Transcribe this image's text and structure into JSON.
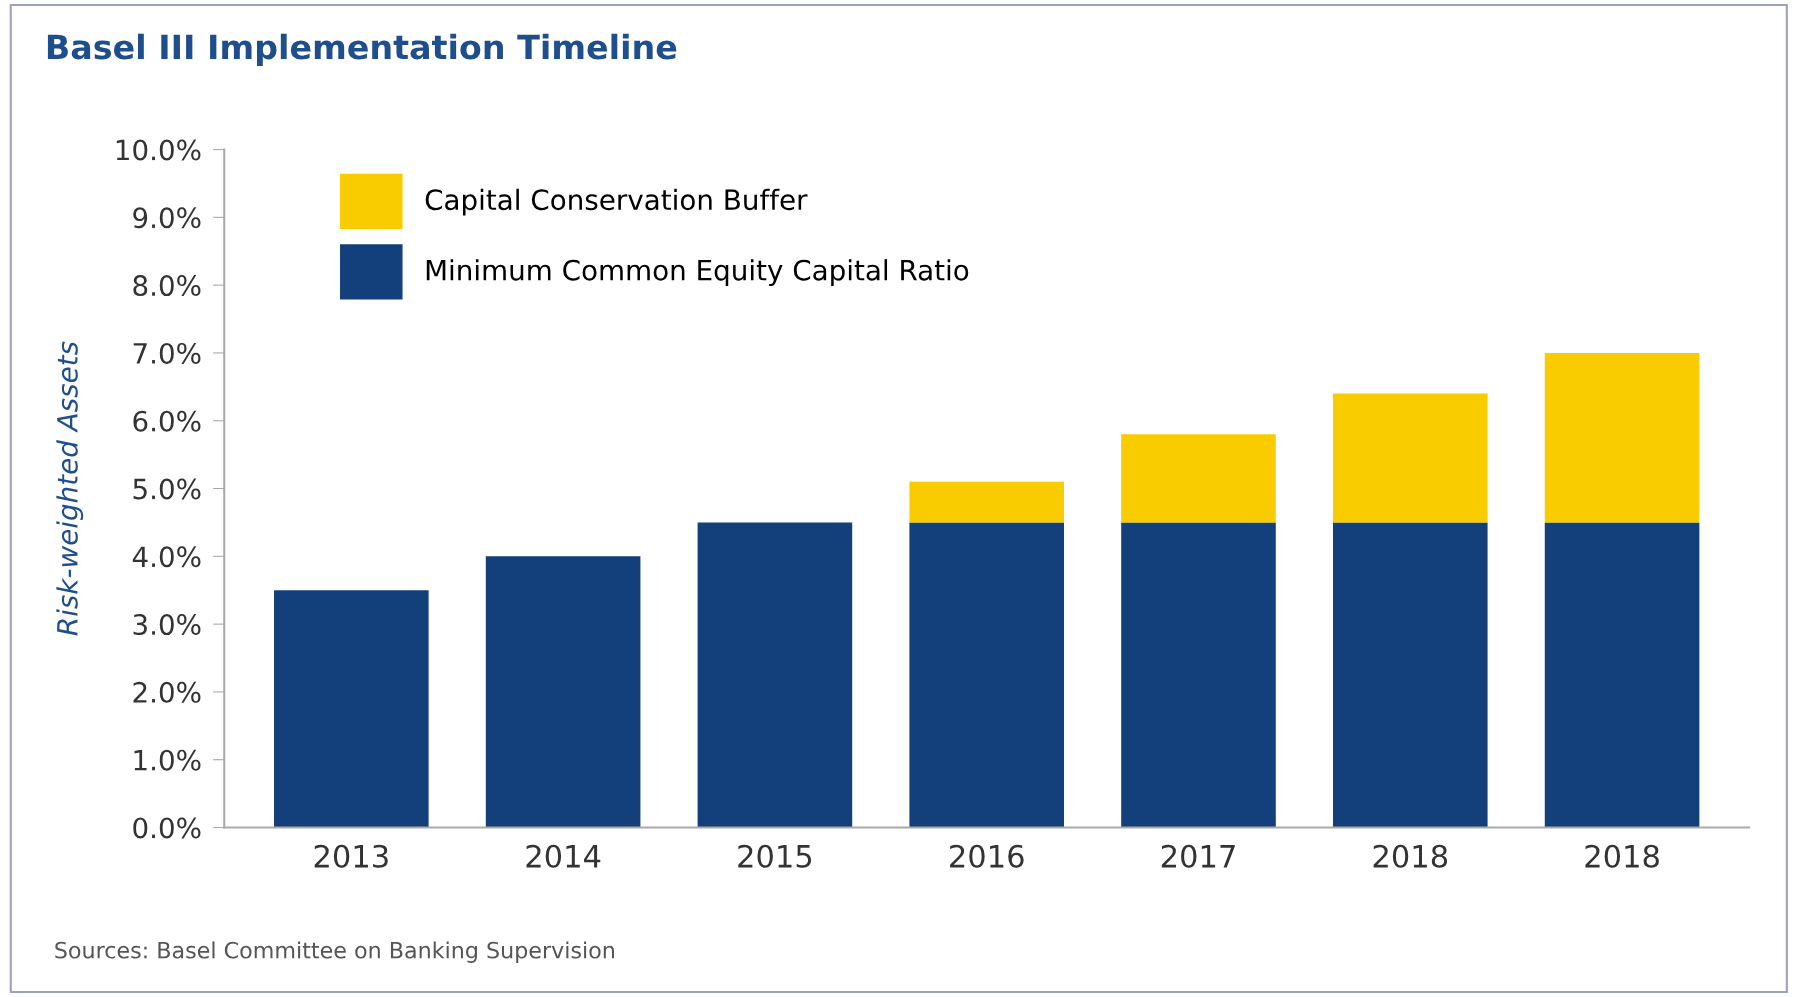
{
  "chart_data": {
    "type": "bar",
    "title": "Basel III Implementation Timeline",
    "ylabel": "Risk-weighted Assets",
    "categories": [
      "2013",
      "2014",
      "2015",
      "2016",
      "2017",
      "2018",
      "2018"
    ],
    "stacked": true,
    "series": [
      {
        "name": "Minimum Common Equity Capital Ratio",
        "color": "#133f7a",
        "values": [
          3.5,
          4.0,
          4.5,
          4.5,
          4.5,
          4.5,
          4.5
        ]
      },
      {
        "name": "Capital Conservation Buffer",
        "color": "#f9cc00",
        "values": [
          null,
          null,
          null,
          0.6,
          1.3,
          1.9,
          2.5
        ]
      }
    ],
    "ylim": [
      0,
      10
    ],
    "yticks": [
      {
        "value": 0,
        "label": "0.0%"
      },
      {
        "value": 1,
        "label": "1.0%"
      },
      {
        "value": 2,
        "label": "2.0%"
      },
      {
        "value": 3,
        "label": "3.0%"
      },
      {
        "value": 4,
        "label": "4.0%"
      },
      {
        "value": 5,
        "label": "5.0%"
      },
      {
        "value": 6,
        "label": "6.0%"
      },
      {
        "value": 7,
        "label": "7.0%"
      },
      {
        "value": 8,
        "label": "8.0%"
      },
      {
        "value": 9,
        "label": "9.0%"
      },
      {
        "value": 10,
        "label": "10.0%"
      }
    ],
    "grid": false,
    "legend": "top left",
    "annotations": [
      "Sources: Basel Committee on Banking Supervision"
    ]
  }
}
